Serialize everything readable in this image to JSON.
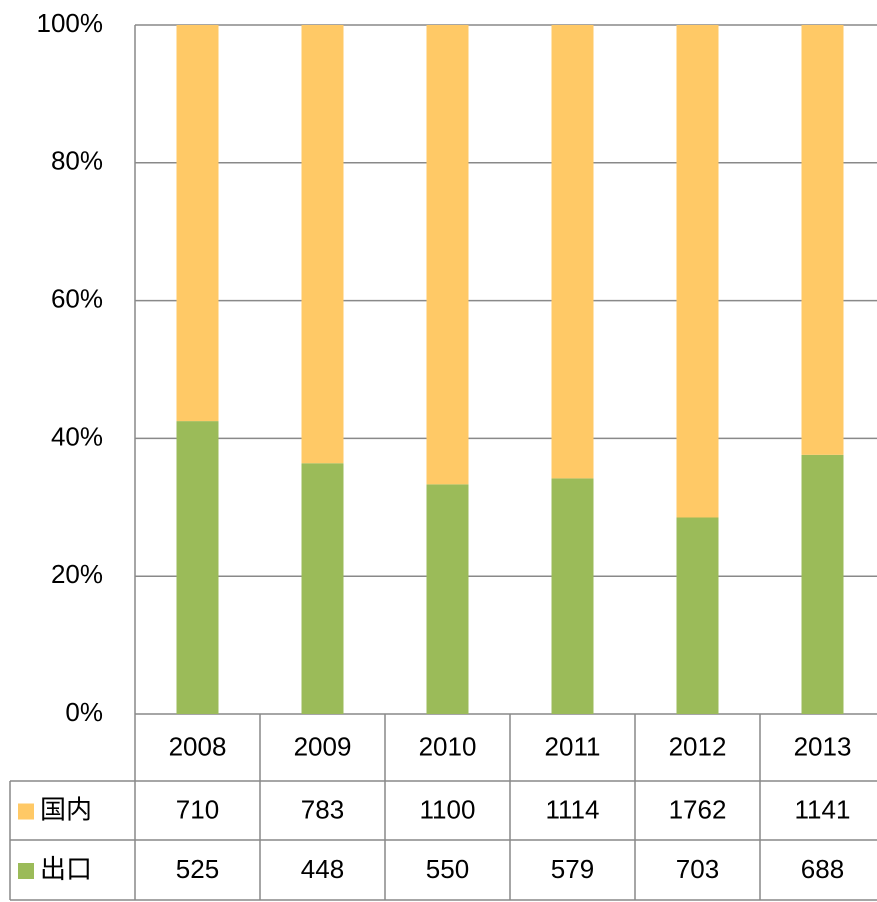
{
  "chart_data": {
    "type": "stacked_bar_percent",
    "categories": [
      "2008",
      "2009",
      "2010",
      "2011",
      "2012",
      "2013"
    ],
    "series": [
      {
        "name": "国内",
        "color": "#ffc966",
        "values": [
          710,
          783,
          1100,
          1114,
          1762,
          1141
        ]
      },
      {
        "name": "出口",
        "color": "#9bbb59",
        "values": [
          525,
          448,
          550,
          579,
          703,
          688
        ]
      }
    ],
    "ylim": [
      0,
      100
    ],
    "yticks": [
      {
        "value": 0,
        "label": "0%"
      },
      {
        "value": 20,
        "label": "20%"
      },
      {
        "value": 40,
        "label": "40%"
      },
      {
        "value": 60,
        "label": "60%"
      },
      {
        "value": 80,
        "label": "80%"
      },
      {
        "value": 100,
        "label": "100%"
      }
    ],
    "grid": true,
    "data_table": true
  }
}
